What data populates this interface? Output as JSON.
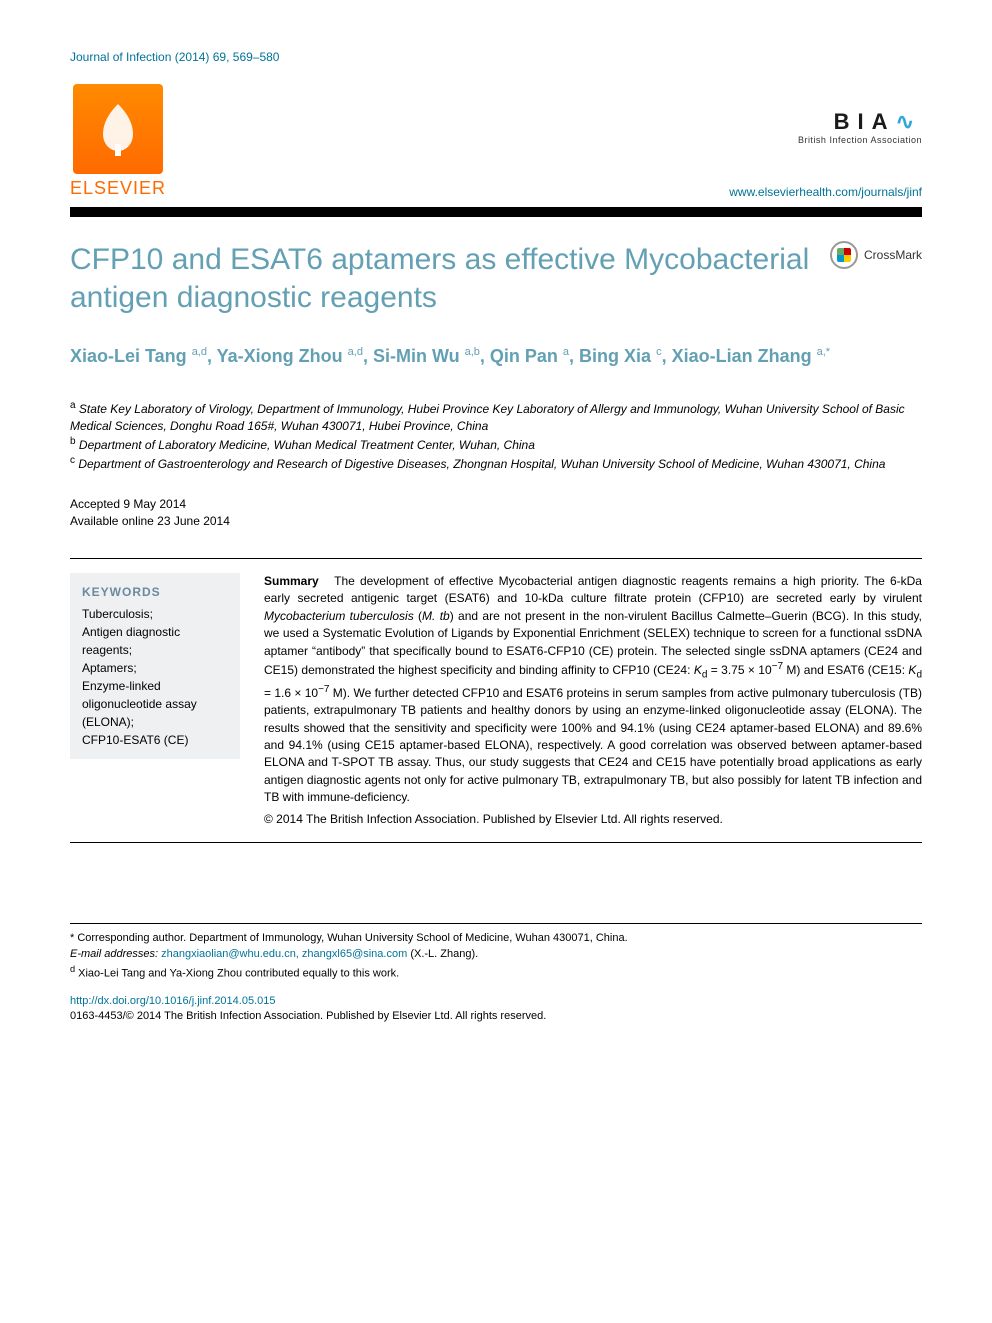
{
  "running_head": "Journal of Infection (2014) 69, 569–580",
  "publisher": {
    "name": "ELSEVIER",
    "journal_url": "www.elsevierhealth.com/journals/jinf"
  },
  "association": {
    "logo_text": "BIA",
    "subtitle": "British Infection Association"
  },
  "crossmark_label": "CrossMark",
  "title": "CFP10 and ESAT6 aptamers as effective Mycobacterial antigen diagnostic reagents",
  "authors_html": "Xiao-Lei Tang <sup>a,d</sup>, Ya-Xiong Zhou <sup>a,d</sup>, Si-Min Wu <sup>a,b</sup>, Qin Pan <sup>a</sup>, Bing Xia <sup>c</sup>, Xiao-Lian Zhang <sup>a,*</sup>",
  "affiliations": [
    {
      "sup": "a",
      "text": "State Key Laboratory of Virology, Department of Immunology, Hubei Province Key Laboratory of Allergy and Immunology, Wuhan University School of Basic Medical Sciences, Donghu Road 165#, Wuhan 430071, Hubei Province, China"
    },
    {
      "sup": "b",
      "text": "Department of Laboratory Medicine, Wuhan Medical Treatment Center, Wuhan, China"
    },
    {
      "sup": "c",
      "text": "Department of Gastroenterology and Research of Digestive Diseases, Zhongnan Hospital, Wuhan University School of Medicine, Wuhan 430071, China"
    }
  ],
  "dates": {
    "accepted": "Accepted 9 May 2014",
    "online": "Available online 23 June 2014"
  },
  "keywords": {
    "heading": "KEYWORDS",
    "items": [
      "Tuberculosis;",
      "Antigen diagnostic reagents;",
      "Aptamers;",
      "Enzyme-linked oligonucleotide assay (ELONA);",
      "CFP10-ESAT6 (CE)"
    ]
  },
  "summary": {
    "lead": "Summary",
    "body_html": "The development of effective Mycobacterial antigen diagnostic reagents remains a high priority. The 6-kDa early secreted antigenic target (ESAT6) and 10-kDa culture filtrate protein (CFP10) are secreted early by virulent <em>Mycobacterium tuberculosis</em> (<em>M. tb</em>) and are not present in the non-virulent Bacillus Calmette–Guerin (BCG). In this study, we used a Systematic Evolution of Ligands by Exponential Enrichment (SELEX) technique to screen for a functional ssDNA aptamer “antibody” that specifically bound to ESAT6-CFP10 (CE) protein. The selected single ssDNA aptamers (CE24 and CE15) demonstrated the highest specificity and binding affinity to CFP10 (CE24: <em>K</em><sub>d</sub> = 3.75 × 10<sup>−7</sup> M) and ESAT6 (CE15: <em>K</em><sub>d</sub> = 1.6 × 10<sup>−7</sup> M). We further detected CFP10 and ESAT6 proteins in serum samples from active pulmonary tuberculosis (TB) patients, extrapulmonary TB patients and healthy donors by using an enzyme-linked oligonucleotide assay (ELONA). The results showed that the sensitivity and specificity were 100% and 94.1% (using CE24 aptamer-based ELONA) and 89.6% and 94.1% (using CE15 aptamer-based ELONA), respectively. A good correlation was observed between aptamer-based ELONA and T-SPOT TB assay. Thus, our study suggests that CE24 and CE15 have potentially broad applications as early antigen diagnostic agents not only for active pulmonary TB, extrapulmonary TB, but also possibly for latent TB infection and TB with immune-deficiency.",
    "copyright": "© 2014 The British Infection Association. Published by Elsevier Ltd. All rights reserved."
  },
  "footnotes": {
    "corresponding": "* Corresponding author. Department of Immunology, Wuhan University School of Medicine, Wuhan 430071, China.",
    "email_label": "E-mail addresses:",
    "emails": "zhangxiaolian@whu.edu.cn, zhangxl65@sina.com",
    "email_suffix": "(X.-L. Zhang).",
    "equal": "Xiao-Lei Tang and Ya-Xiong Zhou contributed equally to this work.",
    "equal_sup": "d"
  },
  "doi": {
    "url": "http://dx.doi.org/10.1016/j.jinf.2014.05.015",
    "issn_line": "0163-4453/© 2014 The British Infection Association. Published by Elsevier Ltd. All rights reserved."
  },
  "colors": {
    "link": "#007398",
    "title": "#63a0b4",
    "elsevier": "#ff6a00",
    "keyword_bg": "#eef0f2"
  }
}
